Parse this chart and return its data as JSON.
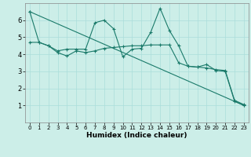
{
  "xlabel": "Humidex (Indice chaleur)",
  "bg_color": "#cceee8",
  "line_color": "#1a7a6a",
  "grid_color": "#aaddda",
  "xlim": [
    -0.5,
    23.5
  ],
  "ylim": [
    0,
    7
  ],
  "xticks": [
    0,
    1,
    2,
    3,
    4,
    5,
    6,
    7,
    8,
    9,
    10,
    11,
    12,
    13,
    14,
    15,
    16,
    17,
    18,
    19,
    20,
    21,
    22,
    23
  ],
  "yticks": [
    1,
    2,
    3,
    4,
    5,
    6
  ],
  "line1_x": [
    0,
    1,
    2,
    3,
    4,
    5,
    6,
    7,
    8,
    9,
    10,
    11,
    12,
    13,
    14,
    15,
    16,
    17,
    18,
    19,
    20,
    21,
    22,
    23
  ],
  "line1_y": [
    6.5,
    4.7,
    4.5,
    4.2,
    4.3,
    4.3,
    4.3,
    5.85,
    6.0,
    5.5,
    3.85,
    4.3,
    4.35,
    5.3,
    6.7,
    5.4,
    4.5,
    3.3,
    3.25,
    3.4,
    3.05,
    3.0,
    1.25,
    1.0
  ],
  "line2_x": [
    0,
    1,
    2,
    3,
    4,
    5,
    6,
    7,
    8,
    9,
    10,
    11,
    12,
    13,
    14,
    15,
    16,
    17,
    18,
    19,
    20,
    21,
    22,
    23
  ],
  "line2_y": [
    4.7,
    4.7,
    4.5,
    4.1,
    3.9,
    4.2,
    4.1,
    4.2,
    4.35,
    4.4,
    4.45,
    4.5,
    4.5,
    4.55,
    4.55,
    4.55,
    3.5,
    3.3,
    3.25,
    3.2,
    3.1,
    3.05,
    1.3,
    1.05
  ],
  "line3_x": [
    0,
    23
  ],
  "line3_y": [
    6.5,
    1.0
  ]
}
